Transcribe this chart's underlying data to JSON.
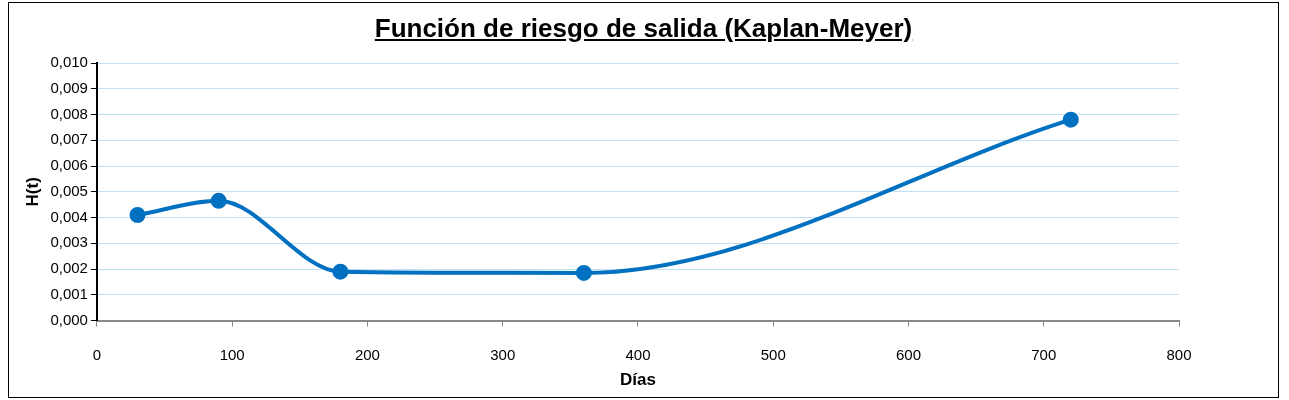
{
  "chart_data": {
    "type": "line",
    "title": "Función de riesgo de salida (Kaplan-Meyer)",
    "xlabel": "Días",
    "ylabel": "H(t)",
    "x": [
      30,
      90,
      180,
      360,
      720
    ],
    "series": [
      {
        "color": "#0070c0",
        "values": [
          0.0041,
          0.00465,
          0.0019,
          0.00185,
          0.0078
        ]
      }
    ],
    "xlim": [
      0,
      800
    ],
    "xticks": [
      0,
      100,
      200,
      300,
      400,
      500,
      600,
      700,
      800
    ],
    "ylim": [
      0,
      0.01
    ],
    "yticks": [
      {
        "value": 0,
        "label": "0,000"
      },
      {
        "value": 0.001,
        "label": "0,001"
      },
      {
        "value": 0.002,
        "label": "0,002"
      },
      {
        "value": 0.003,
        "label": "0,003"
      },
      {
        "value": 0.004,
        "label": "0,004"
      },
      {
        "value": 0.005,
        "label": "0,005"
      },
      {
        "value": 0.006,
        "label": "0,006"
      },
      {
        "value": 0.007,
        "label": "0,007"
      },
      {
        "value": 0.008,
        "label": "0,008"
      },
      {
        "value": 0.009,
        "label": "0,009"
      },
      {
        "value": 0.01,
        "label": "0,010"
      }
    ],
    "grid": "y",
    "legend": false,
    "marker": "circle",
    "line_style": "solid"
  }
}
